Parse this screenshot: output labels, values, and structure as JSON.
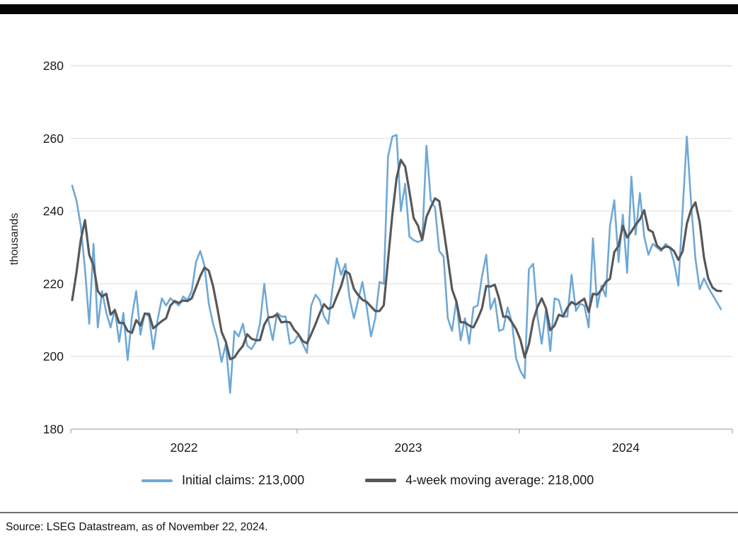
{
  "chart_data": {
    "type": "line",
    "title": "",
    "xlabel": "",
    "ylabel": "thousands",
    "x_axis": {
      "labels": [
        "2022",
        "2023",
        "2024"
      ],
      "range_note": "weekly data, Jan 2022 - Nov 22 2024"
    },
    "y_axis": {
      "ticks": [
        280,
        260,
        240,
        220,
        200,
        180
      ],
      "ylim": [
        180,
        280
      ]
    },
    "grid": "horizontal",
    "legend_position": "bottom",
    "series": [
      {
        "name": "Initial claims",
        "color": "#6FA8D5",
        "values": [
          247,
          243,
          236,
          224,
          209,
          231,
          208,
          218,
          212,
          208,
          213,
          204,
          212,
          199,
          211,
          218,
          206,
          212,
          211,
          202,
          210,
          216,
          214,
          216,
          215,
          214,
          216.5,
          215.5,
          218,
          226,
          229,
          225,
          214.5,
          209,
          205,
          198.5,
          203.5,
          190,
          207,
          205.5,
          209,
          203,
          202,
          204,
          209,
          220,
          210,
          204.5,
          212,
          211,
          211,
          203.5,
          204,
          206,
          203.5,
          201,
          214,
          217,
          215.5,
          211,
          209,
          219,
          227,
          222.5,
          225.5,
          216,
          210.5,
          215.5,
          220.5,
          213.5,
          205.5,
          210.5,
          220.5,
          220,
          255,
          260.5,
          261,
          240,
          247.5,
          233,
          232,
          231.5,
          232,
          258,
          243,
          241,
          229,
          227.5,
          210.5,
          207,
          215.5,
          204.5,
          210.5,
          203.5,
          213.5,
          214,
          222,
          228,
          213,
          216,
          207,
          207.5,
          213.5,
          209.5,
          199.5,
          196,
          194,
          224,
          225.5,
          211,
          203.5,
          213,
          201.5,
          216,
          215.5,
          211,
          211,
          222.5,
          212.5,
          214.5,
          214,
          208,
          232.5,
          213.5,
          219.5,
          216.5,
          236,
          243,
          226,
          239,
          223,
          249.5,
          233.5,
          245,
          233,
          228,
          231,
          230,
          229,
          231,
          230,
          226,
          219.5,
          240,
          260.5,
          242,
          227,
          218.5,
          221.5,
          219,
          217,
          215,
          213
        ]
      },
      {
        "name": "4-week moving average",
        "color": "#58585A",
        "values": [
          215.5,
          223,
          232,
          237.5,
          228,
          225,
          218,
          216.5,
          217.25,
          211.5,
          212.75,
          209.25,
          209.25,
          207,
          206.5,
          210,
          208.5,
          211.75,
          211.75,
          207.75,
          208.75,
          209.75,
          210.5,
          214,
          215.25,
          214.75,
          215.4,
          215.25,
          216,
          219,
          222.1,
          224.5,
          223.6,
          219.4,
          213.4,
          206.75,
          204,
          199.25,
          199.75,
          201.5,
          202.9,
          206.1,
          204.9,
          204.5,
          204.5,
          208.75,
          210.75,
          210.9,
          211.6,
          209.4,
          209.6,
          209.4,
          207.4,
          206.1,
          204.25,
          203.6,
          206.1,
          208.9,
          211.9,
          214.4,
          213.1,
          213.6,
          216.5,
          219.4,
          223.5,
          222.75,
          218.6,
          216.9,
          215.6,
          215,
          213.75,
          212.5,
          212.5,
          214.1,
          226.5,
          239,
          249.1,
          254.1,
          252.25,
          245.4,
          238.1,
          236,
          232.1,
          238.4,
          241.1,
          243.5,
          242.75,
          235.1,
          227,
          218.5,
          215.1,
          209.4,
          209.4,
          208.5,
          208,
          210.4,
          213.25,
          219.4,
          219.25,
          219.75,
          216,
          210.9,
          211,
          209.4,
          207.5,
          204.6,
          199.75,
          203.4,
          209.9,
          213.6,
          216,
          213.25,
          207.25,
          208.5,
          211.5,
          211,
          213.4,
          215,
          214.25,
          215.1,
          215.9,
          212.25,
          217.25,
          217,
          218.4,
          220.5,
          221.4,
          228.75,
          230.4,
          236,
          232.75,
          234.4,
          236.25,
          237.75,
          240.25,
          234.9,
          234.25,
          230.5,
          229.5,
          230.25,
          230,
          229,
          226.6,
          228.9,
          236.5,
          240.5,
          242.4,
          237,
          227.25,
          221.5,
          219,
          218.1,
          218
        ]
      }
    ]
  },
  "legend": {
    "items": [
      {
        "label": "Initial claims: 213,000",
        "color": "#6FA8D5"
      },
      {
        "label": "4-week moving average: 218,000",
        "color": "#58585A"
      }
    ]
  },
  "footer": {
    "source": "Source: LSEG Datastream, as of November 22, 2024."
  },
  "colors": {
    "top_bar": "#070707",
    "gridline": "#e4e4e4",
    "axis_line": "#bbbbbb",
    "text": "#1a1a1a"
  }
}
